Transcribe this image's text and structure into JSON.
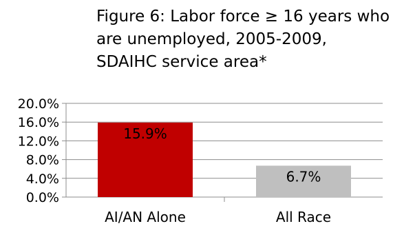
{
  "chart_data": {
    "type": "bar",
    "title": "Figure 6: Labor force ≥ 16 years who are unemployed, 2005-2009, SDAIHC service area*",
    "categories": [
      "AI/AN Alone",
      "All Race"
    ],
    "values": [
      15.9,
      6.7
    ],
    "data_labels": [
      "15.9%",
      "6.7%"
    ],
    "bar_colors": [
      "#c00000",
      "#bfbfbf"
    ],
    "ylim": [
      0,
      20
    ],
    "yticks": [
      0,
      4,
      8,
      12,
      16,
      20
    ],
    "ytick_labels": [
      "0.0%",
      "4.0%",
      "8.0%",
      "12.0%",
      "16.0%",
      "20.0%"
    ],
    "grid": true,
    "legend": "none",
    "xlabel": "",
    "ylabel": ""
  }
}
